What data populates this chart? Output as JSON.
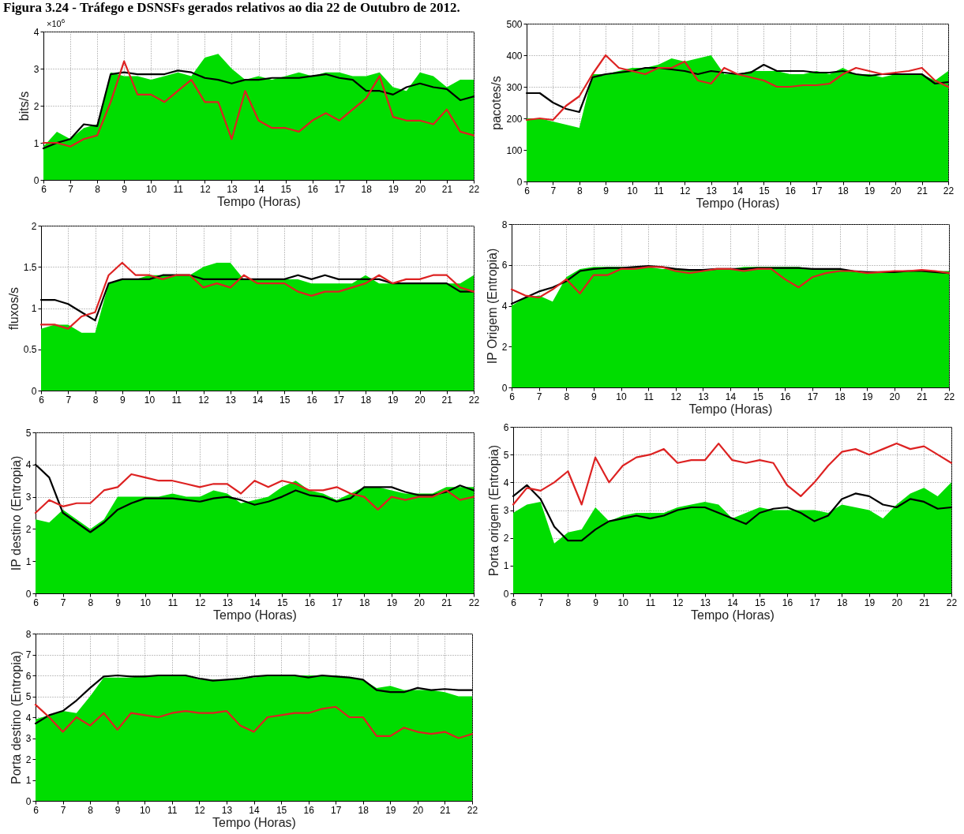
{
  "chart_data": [
    {
      "type": "line",
      "title": "Figura 3.24 - Tráfego e DSNSFs gerados relativos ao dia 22 de Outubro de 2012.",
      "annotations": [
        "×10$^{6}$"
      ],
      "xlabel": "Tempo (Horas)",
      "ylabel": "bits/s",
      "xlim": [
        6,
        22
      ],
      "xticks": [
        6,
        7,
        8,
        9,
        10,
        11,
        12,
        13,
        14,
        15,
        16,
        17,
        18,
        19,
        20,
        21,
        22
      ],
      "ylim": [
        0,
        4
      ],
      "yticks": [
        0,
        1,
        2,
        3,
        4
      ],
      "grid": true,
      "x": [
        6,
        6.5,
        7,
        7.5,
        8,
        8.5,
        9,
        9.5,
        10,
        10.5,
        11,
        11.5,
        12,
        12.5,
        13,
        13.5,
        14,
        14.5,
        15,
        15.5,
        16,
        16.5,
        17,
        17.5,
        18,
        18.5,
        19,
        19.5,
        20,
        20.5,
        21,
        21.5,
        22
      ],
      "series": [
        {
          "type": "area",
          "color": "#00dd00",
          "values": [
            0.9,
            1.3,
            1.1,
            1.4,
            1.5,
            2.9,
            2.8,
            2.8,
            2.7,
            2.8,
            2.9,
            2.8,
            3.3,
            3.4,
            3.0,
            2.7,
            2.8,
            2.7,
            2.8,
            2.9,
            2.8,
            2.9,
            2.9,
            2.8,
            2.8,
            2.9,
            2.5,
            2.4,
            2.9,
            2.8,
            2.5,
            2.7,
            2.7
          ]
        },
        {
          "type": "line",
          "color": "#000000",
          "values": [
            0.85,
            1.0,
            1.1,
            1.5,
            1.45,
            2.85,
            2.9,
            2.85,
            2.85,
            2.85,
            2.95,
            2.9,
            2.75,
            2.7,
            2.6,
            2.7,
            2.7,
            2.75,
            2.75,
            2.75,
            2.8,
            2.85,
            2.75,
            2.7,
            2.4,
            2.4,
            2.3,
            2.5,
            2.6,
            2.5,
            2.45,
            2.15,
            2.25
          ]
        },
        {
          "type": "line",
          "color": "#dd2222",
          "values": [
            1.0,
            1.0,
            0.9,
            1.1,
            1.2,
            2.1,
            3.2,
            2.3,
            2.3,
            2.1,
            2.4,
            2.7,
            2.1,
            2.1,
            1.1,
            2.4,
            1.6,
            1.4,
            1.4,
            1.3,
            1.6,
            1.8,
            1.6,
            1.9,
            2.2,
            2.8,
            1.7,
            1.6,
            1.6,
            1.5,
            1.9,
            1.3,
            1.2
          ]
        }
      ]
    },
    {
      "type": "line",
      "xlabel": "Tempo (Horas)",
      "ylabel": "pacotes/s",
      "xlim": [
        6,
        22
      ],
      "xticks": [
        6,
        7,
        8,
        9,
        10,
        11,
        12,
        13,
        14,
        15,
        16,
        17,
        18,
        19,
        20,
        21,
        22
      ],
      "ylim": [
        0,
        500
      ],
      "yticks": [
        0,
        100,
        200,
        300,
        400,
        500
      ],
      "grid": true,
      "x": [
        6,
        6.5,
        7,
        7.5,
        8,
        8.5,
        9,
        9.5,
        10,
        10.5,
        11,
        11.5,
        12,
        12.5,
        13,
        13.5,
        14,
        14.5,
        15,
        15.5,
        16,
        16.5,
        17,
        17.5,
        18,
        18.5,
        19,
        19.5,
        20,
        20.5,
        21,
        21.5,
        22
      ],
      "series": [
        {
          "type": "area",
          "color": "#00dd00",
          "values": [
            200,
            200,
            190,
            180,
            170,
            340,
            340,
            350,
            360,
            360,
            370,
            390,
            380,
            390,
            400,
            340,
            340,
            350,
            350,
            350,
            340,
            340,
            350,
            340,
            360,
            340,
            340,
            330,
            340,
            340,
            340,
            320,
            350
          ]
        },
        {
          "type": "line",
          "color": "#000000",
          "values": [
            280,
            280,
            250,
            230,
            220,
            330,
            340,
            345,
            350,
            360,
            360,
            355,
            350,
            340,
            350,
            345,
            340,
            345,
            370,
            350,
            350,
            350,
            345,
            345,
            350,
            340,
            335,
            340,
            340,
            340,
            340,
            310,
            315
          ]
        },
        {
          "type": "line",
          "color": "#dd2222",
          "values": [
            195,
            200,
            195,
            240,
            270,
            340,
            400,
            360,
            350,
            340,
            360,
            360,
            380,
            320,
            310,
            360,
            340,
            330,
            320,
            300,
            300,
            305,
            305,
            310,
            340,
            360,
            350,
            340,
            345,
            350,
            360,
            320,
            300
          ]
        }
      ]
    },
    {
      "type": "line",
      "ylabel": "fluxos/s",
      "xlim": [
        6,
        22
      ],
      "xticks": [
        6,
        7,
        8,
        9,
        10,
        11,
        12,
        13,
        14,
        15,
        16,
        17,
        18,
        19,
        20,
        21,
        22
      ],
      "ylim": [
        0,
        2
      ],
      "yticks": [
        0,
        0.5,
        1,
        1.5,
        2
      ],
      "grid": true,
      "x": [
        6,
        6.5,
        7,
        7.5,
        8,
        8.5,
        9,
        9.5,
        10,
        10.5,
        11,
        11.5,
        12,
        12.5,
        13,
        13.5,
        14,
        14.5,
        15,
        15.5,
        16,
        16.5,
        17,
        17.5,
        18,
        18.5,
        19,
        19.5,
        20,
        20.5,
        21,
        21.5,
        22
      ],
      "series": [
        {
          "type": "area",
          "color": "#00dd00",
          "values": [
            0.75,
            0.8,
            0.8,
            0.7,
            0.7,
            1.3,
            1.35,
            1.35,
            1.4,
            1.4,
            1.4,
            1.4,
            1.5,
            1.55,
            1.55,
            1.35,
            1.35,
            1.35,
            1.35,
            1.35,
            1.3,
            1.3,
            1.3,
            1.3,
            1.4,
            1.3,
            1.3,
            1.3,
            1.3,
            1.3,
            1.3,
            1.3,
            1.4
          ]
        },
        {
          "type": "line",
          "color": "#000000",
          "values": [
            1.1,
            1.1,
            1.05,
            0.95,
            0.85,
            1.3,
            1.35,
            1.35,
            1.35,
            1.4,
            1.4,
            1.4,
            1.35,
            1.35,
            1.35,
            1.35,
            1.35,
            1.35,
            1.35,
            1.4,
            1.35,
            1.4,
            1.35,
            1.35,
            1.35,
            1.35,
            1.3,
            1.3,
            1.3,
            1.3,
            1.3,
            1.2,
            1.2
          ]
        },
        {
          "type": "line",
          "color": "#dd2222",
          "values": [
            0.8,
            0.8,
            0.75,
            0.9,
            0.95,
            1.4,
            1.55,
            1.4,
            1.4,
            1.35,
            1.4,
            1.4,
            1.25,
            1.3,
            1.25,
            1.4,
            1.3,
            1.3,
            1.3,
            1.2,
            1.15,
            1.2,
            1.2,
            1.25,
            1.3,
            1.4,
            1.3,
            1.35,
            1.35,
            1.4,
            1.4,
            1.25,
            1.2
          ]
        }
      ]
    },
    {
      "type": "line",
      "xlabel": "Tempo (Horas)",
      "ylabel": "IP Origem (Entropia)",
      "xlim": [
        6,
        22
      ],
      "xticks": [
        6,
        7,
        8,
        9,
        10,
        11,
        12,
        13,
        14,
        15,
        16,
        17,
        18,
        19,
        20,
        21,
        22
      ],
      "ylim": [
        0,
        8
      ],
      "yticks": [
        0,
        2,
        4,
        6,
        8
      ],
      "grid": true,
      "x": [
        6,
        6.5,
        7,
        7.5,
        8,
        8.5,
        9,
        9.5,
        10,
        10.5,
        11,
        11.5,
        12,
        12.5,
        13,
        13.5,
        14,
        14.5,
        15,
        15.5,
        16,
        16.5,
        17,
        17.5,
        18,
        18.5,
        19,
        19.5,
        20,
        20.5,
        21,
        21.5,
        22
      ],
      "series": [
        {
          "type": "area",
          "color": "#00dd00",
          "values": [
            4.0,
            4.4,
            4.5,
            4.2,
            5.4,
            5.8,
            5.9,
            5.9,
            5.9,
            5.9,
            5.9,
            5.8,
            5.8,
            5.8,
            5.8,
            5.8,
            5.8,
            5.9,
            5.9,
            5.9,
            5.9,
            5.9,
            5.8,
            5.8,
            5.8,
            5.7,
            5.6,
            5.6,
            5.7,
            5.7,
            5.7,
            5.7,
            5.7
          ]
        },
        {
          "type": "line",
          "color": "#000000",
          "values": [
            4.1,
            4.4,
            4.7,
            4.9,
            5.2,
            5.7,
            5.8,
            5.85,
            5.85,
            5.9,
            5.95,
            5.9,
            5.8,
            5.75,
            5.75,
            5.8,
            5.8,
            5.8,
            5.85,
            5.85,
            5.85,
            5.85,
            5.8,
            5.8,
            5.8,
            5.7,
            5.65,
            5.65,
            5.65,
            5.7,
            5.7,
            5.65,
            5.6
          ]
        },
        {
          "type": "line",
          "color": "#dd2222",
          "values": [
            4.8,
            4.5,
            4.4,
            4.8,
            5.3,
            4.6,
            5.5,
            5.5,
            5.8,
            5.8,
            5.9,
            5.9,
            5.7,
            5.6,
            5.7,
            5.8,
            5.8,
            5.7,
            5.8,
            5.8,
            5.3,
            4.9,
            5.4,
            5.6,
            5.7,
            5.7,
            5.6,
            5.65,
            5.7,
            5.7,
            5.75,
            5.7,
            5.6
          ]
        }
      ]
    },
    {
      "type": "line",
      "xlabel": "Tempo (Horas)",
      "ylabel": "IP destino (Entropia)",
      "xlim": [
        6,
        22
      ],
      "xticks": [
        6,
        7,
        8,
        9,
        10,
        11,
        12,
        13,
        14,
        15,
        16,
        17,
        18,
        19,
        20,
        21,
        22
      ],
      "ylim": [
        0,
        5
      ],
      "yticks": [
        0,
        1,
        2,
        3,
        4,
        5
      ],
      "grid": true,
      "x": [
        6,
        6.5,
        7,
        7.5,
        8,
        8.5,
        9,
        9.5,
        10,
        10.5,
        11,
        11.5,
        12,
        12.5,
        13,
        13.5,
        14,
        14.5,
        15,
        15.5,
        16,
        16.5,
        17,
        17.5,
        18,
        18.5,
        19,
        19.5,
        20,
        20.5,
        21,
        21.5,
        22
      ],
      "series": [
        {
          "type": "area",
          "color": "#00dd00",
          "values": [
            2.3,
            2.2,
            2.6,
            2.3,
            2.0,
            2.3,
            3.0,
            3.0,
            3.0,
            3.0,
            3.1,
            3.0,
            3.0,
            3.2,
            3.1,
            2.8,
            2.9,
            3.0,
            3.3,
            3.5,
            3.2,
            3.1,
            2.9,
            3.1,
            3.3,
            3.3,
            3.2,
            3.1,
            3.1,
            3.1,
            3.3,
            3.3,
            3.3
          ]
        },
        {
          "type": "line",
          "color": "#000000",
          "values": [
            4.0,
            3.6,
            2.5,
            2.2,
            1.9,
            2.2,
            2.6,
            2.8,
            2.95,
            2.95,
            2.95,
            2.9,
            2.85,
            2.95,
            3.0,
            2.9,
            2.75,
            2.85,
            3.0,
            3.2,
            3.05,
            3.0,
            2.85,
            2.95,
            3.3,
            3.3,
            3.3,
            3.15,
            3.05,
            3.05,
            3.15,
            3.35,
            3.2
          ]
        },
        {
          "type": "line",
          "color": "#dd2222",
          "values": [
            2.5,
            2.9,
            2.7,
            2.8,
            2.8,
            3.2,
            3.3,
            3.7,
            3.6,
            3.5,
            3.5,
            3.4,
            3.3,
            3.4,
            3.4,
            3.1,
            3.5,
            3.3,
            3.5,
            3.4,
            3.2,
            3.2,
            3.3,
            3.1,
            3.0,
            2.6,
            3.0,
            2.9,
            3.0,
            3.0,
            3.2,
            2.9,
            3.0
          ]
        }
      ]
    },
    {
      "type": "line",
      "xlabel": "Tempo (Horas)",
      "ylabel": "Porta origem (Entropia)",
      "xlim": [
        6,
        22
      ],
      "xticks": [
        6,
        7,
        8,
        9,
        10,
        11,
        12,
        13,
        14,
        15,
        16,
        17,
        18,
        19,
        20,
        21,
        22
      ],
      "ylim": [
        0,
        6
      ],
      "yticks": [
        0,
        1,
        2,
        3,
        4,
        5,
        6
      ],
      "grid": true,
      "x": [
        6,
        6.5,
        7,
        7.5,
        8,
        8.5,
        9,
        9.5,
        10,
        10.5,
        11,
        11.5,
        12,
        12.5,
        13,
        13.5,
        14,
        14.5,
        15,
        15.5,
        16,
        16.5,
        17,
        17.5,
        18,
        18.5,
        19,
        19.5,
        20,
        20.5,
        21,
        21.5,
        22
      ],
      "series": [
        {
          "type": "area",
          "color": "#00dd00",
          "values": [
            2.9,
            3.2,
            3.3,
            1.8,
            2.2,
            2.3,
            3.1,
            2.6,
            2.8,
            2.9,
            2.9,
            2.9,
            3.1,
            3.2,
            3.3,
            3.2,
            2.7,
            2.9,
            3.1,
            3.0,
            3.0,
            3.0,
            3.0,
            2.9,
            3.2,
            3.1,
            3.0,
            2.7,
            3.2,
            3.6,
            3.8,
            3.5,
            4.0
          ]
        },
        {
          "type": "line",
          "color": "#000000",
          "values": [
            3.5,
            3.9,
            3.4,
            2.4,
            1.9,
            1.9,
            2.3,
            2.6,
            2.7,
            2.8,
            2.7,
            2.8,
            3.0,
            3.1,
            3.1,
            2.9,
            2.7,
            2.5,
            2.9,
            3.05,
            3.1,
            2.9,
            2.6,
            2.8,
            3.4,
            3.6,
            3.5,
            3.2,
            3.1,
            3.4,
            3.3,
            3.05,
            3.1
          ]
        },
        {
          "type": "line",
          "color": "#dd2222",
          "values": [
            3.2,
            3.8,
            3.7,
            4.0,
            4.4,
            3.2,
            4.9,
            4.0,
            4.6,
            4.9,
            5.0,
            5.2,
            4.7,
            4.8,
            4.8,
            5.4,
            4.8,
            4.7,
            4.8,
            4.7,
            3.9,
            3.5,
            4.0,
            4.6,
            5.1,
            5.2,
            5.0,
            5.2,
            5.4,
            5.2,
            5.3,
            5.0,
            4.7
          ]
        }
      ]
    },
    {
      "type": "line",
      "xlabel": "Tempo (Horas)",
      "ylabel": "Porta destino (Entropia)",
      "xlim": [
        6,
        22
      ],
      "xticks": [
        6,
        7,
        8,
        9,
        10,
        11,
        12,
        13,
        14,
        15,
        16,
        17,
        18,
        19,
        20,
        21,
        22
      ],
      "ylim": [
        0,
        8
      ],
      "yticks": [
        0,
        1,
        2,
        3,
        4,
        5,
        6,
        7,
        8
      ],
      "grid": true,
      "x": [
        6,
        6.5,
        7,
        7.5,
        8,
        8.5,
        9,
        9.5,
        10,
        10.5,
        11,
        11.5,
        12,
        12.5,
        13,
        13.5,
        14,
        14.5,
        15,
        15.5,
        16,
        16.5,
        17,
        17.5,
        18,
        18.5,
        19,
        19.5,
        20,
        20.5,
        21,
        21.5,
        22
      ],
      "series": [
        {
          "type": "area",
          "color": "#00dd00",
          "values": [
            3.9,
            4.1,
            4.3,
            4.2,
            5.0,
            5.9,
            5.9,
            5.9,
            6.0,
            6.0,
            6.0,
            6.0,
            5.8,
            5.8,
            5.8,
            5.9,
            5.9,
            6.0,
            6.0,
            6.0,
            6.0,
            6.0,
            6.0,
            5.9,
            5.8,
            5.4,
            5.5,
            5.3,
            5.3,
            5.3,
            5.2,
            5.0,
            5.0
          ]
        },
        {
          "type": "line",
          "color": "#000000",
          "values": [
            3.7,
            4.1,
            4.3,
            4.8,
            5.4,
            5.95,
            6.0,
            5.95,
            5.95,
            6.0,
            6.0,
            6.0,
            5.85,
            5.75,
            5.8,
            5.85,
            5.95,
            6.0,
            6.0,
            6.0,
            5.9,
            6.0,
            5.95,
            5.9,
            5.8,
            5.3,
            5.2,
            5.2,
            5.4,
            5.3,
            5.35,
            5.3,
            5.3
          ]
        },
        {
          "type": "line",
          "color": "#dd2222",
          "values": [
            4.6,
            4.0,
            3.3,
            4.0,
            3.6,
            4.2,
            3.4,
            4.2,
            4.1,
            4.0,
            4.2,
            4.3,
            4.2,
            4.2,
            4.3,
            3.6,
            3.3,
            4.0,
            4.1,
            4.2,
            4.2,
            4.4,
            4.5,
            4.0,
            4.0,
            3.1,
            3.1,
            3.5,
            3.3,
            3.2,
            3.3,
            3.0,
            3.2
          ]
        }
      ]
    }
  ]
}
